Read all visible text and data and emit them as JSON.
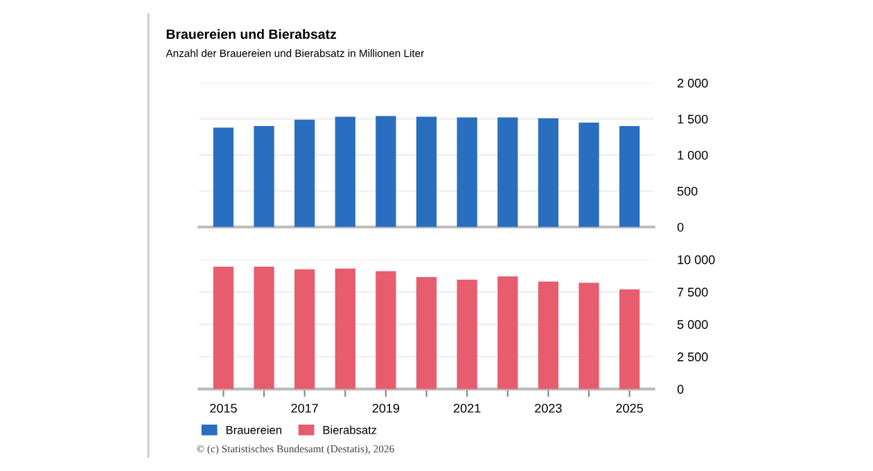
{
  "chart_data": [
    {
      "type": "bar",
      "title": "Brauereien und Bierabsatz",
      "subtitle": "Anzahl der Brauereien und Bierabsatz in Millionen Liter",
      "categories": [
        "2015",
        null,
        "2017",
        null,
        "2019",
        null,
        "2021",
        null,
        "2023",
        null,
        "2025"
      ],
      "series": [
        {
          "name": "Brauereien",
          "color": "#2a6ebf",
          "values": [
            1380,
            1400,
            1490,
            1530,
            1540,
            1530,
            1520,
            1520,
            1510,
            1450,
            1400
          ]
        }
      ],
      "ylim": [
        0,
        2000
      ],
      "yticks": [
        0,
        500,
        {
          "value": 1000,
          "label": "1 000"
        },
        {
          "value": 1500,
          "label": "1 500"
        },
        {
          "value": 2000,
          "label": "2 000"
        }
      ],
      "grid": "y",
      "tick_labels": "y"
    },
    {
      "type": "bar",
      "categories": [
        "2015",
        null,
        "2017",
        null,
        "2019",
        null,
        "2021",
        null,
        "2023",
        null,
        "2025"
      ],
      "series": [
        {
          "name": "Bierabsatz",
          "color": "#e85d6e",
          "values": [
            9450,
            9450,
            9250,
            9300,
            9100,
            8650,
            8450,
            8700,
            8300,
            8200,
            7700
          ]
        }
      ],
      "ylim": [
        0,
        10000
      ],
      "yticks": [
        0,
        {
          "value": 2500,
          "label": "2 500"
        },
        {
          "value": 5000,
          "label": "5 000"
        },
        {
          "value": 7500,
          "label": "7 500"
        },
        {
          "value": 10000,
          "label": "10 000"
        }
      ],
      "grid": "y",
      "legend": "bottom left",
      "annotations": [
        "© (c) Statistisches Bundesamt (Destatis), 2026"
      ]
    }
  ]
}
